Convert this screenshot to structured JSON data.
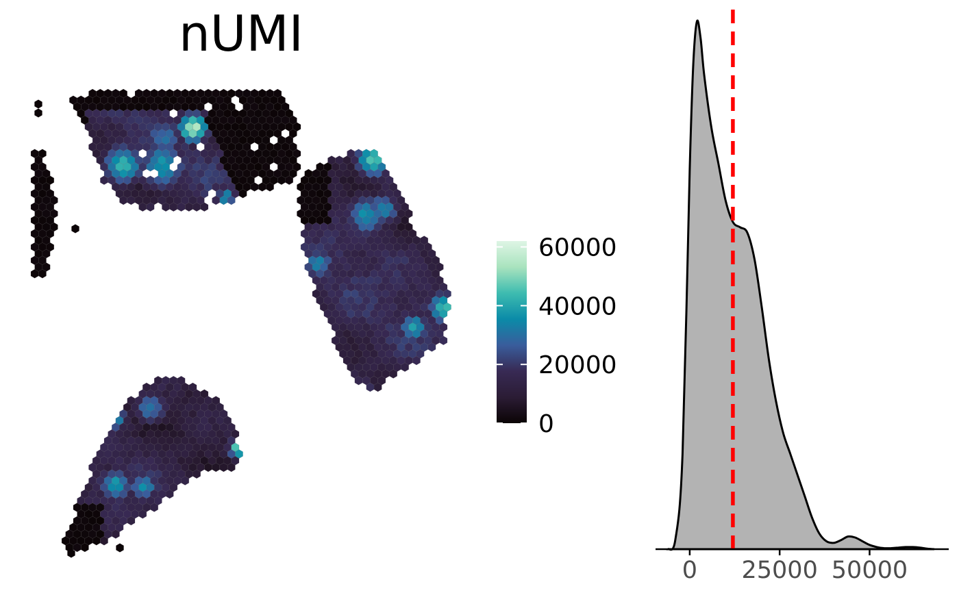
{
  "colors": {
    "background": "#ffffff",
    "density_fill": "#b3b3b3",
    "density_line": "#000000",
    "mean_line": "#ff0000",
    "axis": "#000000",
    "tick_text": "#4d4d4d",
    "colormap": [
      "#0b0405",
      "#2b1c35",
      "#382a54",
      "#395d9c",
      "#0b8ba8",
      "#3ebcb0",
      "#a9e3be",
      "#def5e5"
    ]
  },
  "chart_data": [
    {
      "type": "heatmap",
      "title": "nUMI",
      "description_of_marks": "hexagonal spatial spots coloured by nUMI",
      "colorbar": {
        "ticks": [
          0,
          20000,
          40000,
          60000
        ],
        "tick_labels": [
          "0",
          "20000",
          "40000",
          "60000"
        ],
        "range": [
          0,
          62000
        ]
      },
      "regions": [
        {
          "name": "top-left tissue",
          "value_range": [
            0,
            55000
          ],
          "typical": 14000
        },
        {
          "name": "left edge strip",
          "value_range": [
            0,
            2000
          ],
          "typical": 300
        },
        {
          "name": "right tissue",
          "value_range": [
            2000,
            50000
          ],
          "typical": 15000
        },
        {
          "name": "bottom-left tissue",
          "value_range": [
            0,
            50000
          ],
          "typical": 13000
        }
      ]
    },
    {
      "type": "area",
      "xlabel": "",
      "ylabel": "",
      "xlim": [
        -9500,
        72000
      ],
      "x_ticks": [
        0,
        25000,
        50000
      ],
      "x_tick_labels": [
        "0",
        "25000",
        "50000"
      ],
      "mean_line_x": 12000,
      "x": [
        -6000,
        -4000,
        -2000,
        0,
        1000,
        2000,
        3000,
        4000,
        6000,
        8000,
        10000,
        12000,
        14000,
        16000,
        18000,
        20000,
        22000,
        24000,
        26000,
        28000,
        30000,
        32000,
        34000,
        36000,
        38000,
        40000,
        42000,
        44000,
        46000,
        48000,
        50000,
        52000,
        54000,
        56000,
        58000,
        60000,
        62000,
        64000,
        66000,
        68000
      ],
      "y": [
        0,
        0.018,
        0.18,
        0.72,
        0.92,
        1.0,
        0.97,
        0.9,
        0.8,
        0.73,
        0.66,
        0.62,
        0.61,
        0.6,
        0.55,
        0.46,
        0.36,
        0.28,
        0.22,
        0.18,
        0.14,
        0.1,
        0.06,
        0.03,
        0.015,
        0.012,
        0.017,
        0.024,
        0.022,
        0.015,
        0.008,
        0.004,
        0.002,
        0.002,
        0.003,
        0.004,
        0.004,
        0.003,
        0.001,
        0
      ],
      "ylim": [
        0,
        1.02
      ]
    }
  ]
}
